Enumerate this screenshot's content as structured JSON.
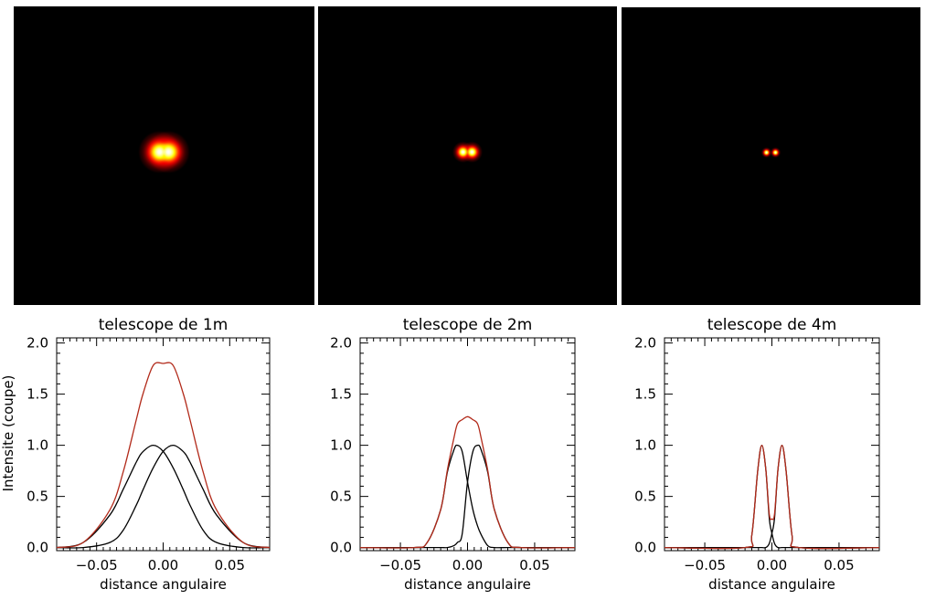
{
  "chart_data": [
    {
      "type": "line",
      "title": "telescope de 1m",
      "xlabel": "distance angulaire",
      "ylabel": "Intensite (coupe)",
      "xlim": [
        -0.08,
        0.08
      ],
      "ylim": [
        -0.03,
        2.05
      ],
      "xticks": [
        -0.05,
        0.0,
        0.05
      ],
      "xtick_labels": [
        "−0.05",
        "0.00",
        "0.05"
      ],
      "yticks": [
        0.0,
        0.5,
        1.0,
        1.5,
        2.0
      ],
      "ytick_labels": [
        "0.0",
        "0.5",
        "1.0",
        "1.5",
        "2.0"
      ],
      "x": [
        -0.08,
        -0.06,
        -0.04,
        -0.03,
        -0.02,
        -0.015,
        -0.0075,
        0.0,
        0.0075,
        0.015,
        0.02,
        0.03,
        0.04,
        0.06,
        0.08
      ],
      "series": [
        {
          "color": "#000000",
          "values": [
            0.0,
            0.05,
            0.32,
            0.57,
            0.84,
            0.94,
            1.0,
            0.94,
            0.78,
            0.57,
            0.42,
            0.17,
            0.05,
            0.0,
            0.0
          ]
        },
        {
          "color": "#000000",
          "values": [
            0.0,
            0.0,
            0.05,
            0.17,
            0.42,
            0.57,
            0.78,
            0.94,
            1.0,
            0.94,
            0.84,
            0.57,
            0.32,
            0.05,
            0.0
          ]
        },
        {
          "color": "#b22a1a",
          "values": [
            0.0,
            0.05,
            0.37,
            0.74,
            1.26,
            1.51,
            1.78,
            1.8,
            1.78,
            1.51,
            1.26,
            0.74,
            0.37,
            0.05,
            0.0
          ]
        }
      ],
      "image": {
        "colormap": "hot",
        "sources_x": [
          -0.0075,
          0.0075
        ],
        "width": 0.0252
      }
    },
    {
      "type": "line",
      "title": "telescope de 2m",
      "xlabel": "distance angulaire",
      "xlim": [
        -0.08,
        0.08
      ],
      "ylim": [
        -0.03,
        2.05
      ],
      "xticks": [
        -0.05,
        0.0,
        0.05
      ],
      "xtick_labels": [
        "−0.05",
        "0.00",
        "0.05"
      ],
      "yticks": [
        0.0,
        0.5,
        1.0,
        1.5,
        2.0
      ],
      "ytick_labels": [
        "0.0",
        "0.5",
        "1.0",
        "1.5",
        "2.0"
      ],
      "x": [
        -0.08,
        -0.04,
        -0.03,
        -0.02,
        -0.015,
        -0.01,
        -0.0075,
        -0.004,
        0.0,
        0.004,
        0.0075,
        0.01,
        0.015,
        0.02,
        0.03,
        0.04,
        0.08
      ],
      "series": [
        {
          "color": "#000000",
          "values": [
            0.0,
            0.0,
            0.05,
            0.37,
            0.74,
            0.96,
            1.0,
            0.94,
            0.64,
            0.37,
            0.21,
            0.13,
            0.02,
            0.0,
            0.0,
            0.0,
            0.0
          ]
        },
        {
          "color": "#000000",
          "values": [
            0.0,
            0.0,
            0.0,
            0.0,
            0.0,
            0.02,
            0.05,
            0.13,
            0.64,
            0.94,
            1.0,
            0.96,
            0.74,
            0.37,
            0.05,
            0.0,
            0.0
          ]
        },
        {
          "color": "#b22a1a",
          "values": [
            0.0,
            0.0,
            0.05,
            0.37,
            0.76,
            1.08,
            1.21,
            1.25,
            1.28,
            1.25,
            1.21,
            1.08,
            0.76,
            0.37,
            0.05,
            0.0,
            0.0
          ]
        }
      ],
      "image": {
        "colormap": "hot",
        "sources_x": [
          -0.0075,
          0.0075
        ],
        "width": 0.0126
      }
    },
    {
      "type": "line",
      "title": "telescope de 4m",
      "xlabel": "distance angulaire",
      "xlim": [
        -0.08,
        0.08
      ],
      "ylim": [
        -0.03,
        2.05
      ],
      "xticks": [
        -0.05,
        0.0,
        0.05
      ],
      "xtick_labels": [
        "−0.05",
        "0.00",
        "0.05"
      ],
      "yticks": [
        0.0,
        0.5,
        1.0,
        1.5,
        2.0
      ],
      "ytick_labels": [
        "0.0",
        "0.5",
        "1.0",
        "1.5",
        "2.0"
      ],
      "x": [
        -0.08,
        -0.02,
        -0.015,
        -0.0105,
        -0.0075,
        -0.0045,
        -0.002,
        0.0,
        0.002,
        0.0045,
        0.0075,
        0.0105,
        0.015,
        0.02,
        0.08
      ],
      "series": [
        {
          "color": "#000000",
          "values": [
            0.0,
            0.0,
            0.12,
            0.76,
            1.0,
            0.76,
            0.29,
            0.14,
            0.04,
            0.0,
            0.0,
            0.0,
            0.0,
            0.0,
            0.0
          ]
        },
        {
          "color": "#000000",
          "values": [
            0.0,
            0.0,
            0.0,
            0.0,
            0.0,
            0.0,
            0.04,
            0.14,
            0.29,
            0.76,
            1.0,
            0.76,
            0.12,
            0.0,
            0.0
          ]
        },
        {
          "color": "#b22a1a",
          "values": [
            0.0,
            0.0,
            0.12,
            0.76,
            1.0,
            0.76,
            0.33,
            0.28,
            0.33,
            0.76,
            1.0,
            0.76,
            0.12,
            0.0,
            0.0
          ]
        }
      ],
      "image": {
        "colormap": "hot",
        "sources_x": [
          -0.0075,
          0.0075
        ],
        "width": 0.0063
      }
    }
  ]
}
